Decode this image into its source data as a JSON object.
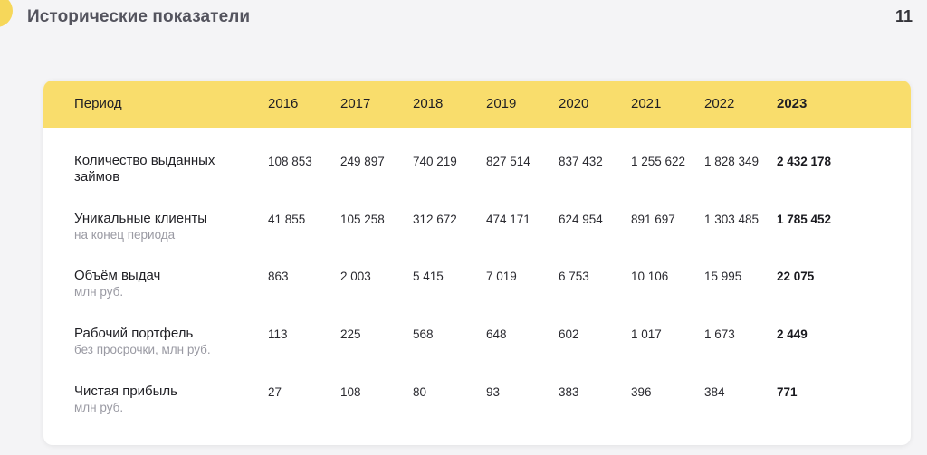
{
  "slide": {
    "title": "Исторические показатели",
    "page_number": "11",
    "accent_color": "#f6d75a"
  },
  "table": {
    "header_color": "#f9dd6c",
    "period_label": "Период",
    "years": [
      "2016",
      "2017",
      "2018",
      "2019",
      "2020",
      "2021",
      "2022",
      "2023"
    ],
    "highlight_year_index": 7,
    "rows": [
      {
        "label": "Количество выданных займов",
        "sublabel": "",
        "values": [
          "108 853",
          "249 897",
          "740 219",
          "827 514",
          "837 432",
          "1 255 622",
          "1 828 349",
          "2 432 178"
        ]
      },
      {
        "label": "Уникальные клиенты",
        "sublabel": "на конец периода",
        "values": [
          "41 855",
          "105 258",
          "312 672",
          "474 171",
          "624 954",
          "891 697",
          "1 303 485",
          "1 785 452"
        ]
      },
      {
        "label": "Объём выдач",
        "sublabel": "млн руб.",
        "values": [
          "863",
          "2 003",
          "5 415",
          "7 019",
          "6 753",
          "10 106",
          "15 995",
          "22 075"
        ]
      },
      {
        "label": "Рабочий портфель",
        "sublabel": "без просрочки, млн руб.",
        "values": [
          "113",
          "225",
          "568",
          "648",
          "602",
          "1 017",
          "1 673",
          "2 449"
        ]
      },
      {
        "label": "Чистая прибыль",
        "sublabel": "млн руб.",
        "values": [
          "27",
          "108",
          "80",
          "93",
          "383",
          "396",
          "384",
          "771"
        ]
      }
    ]
  }
}
